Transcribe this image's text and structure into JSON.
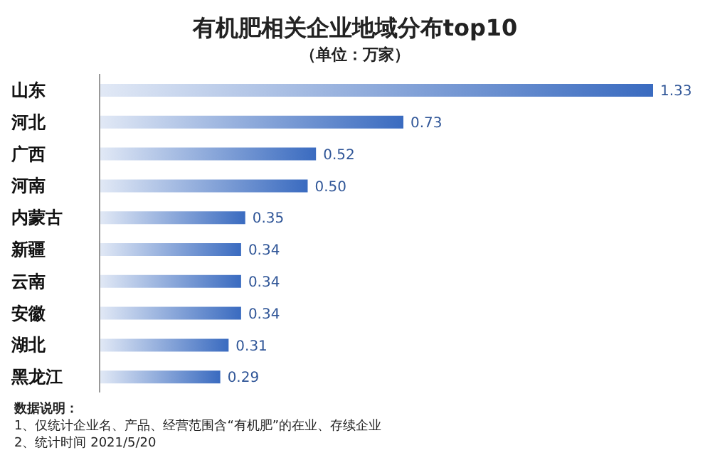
{
  "chart_data": {
    "type": "bar",
    "orientation": "horizontal",
    "title": "有机肥相关企业地域分布top10",
    "subtitle": "（单位：万家）",
    "categories": [
      "山东",
      "河北",
      "广西",
      "河南",
      "内蒙古",
      "新疆",
      "云南",
      "安徽",
      "湖北",
      "黑龙江"
    ],
    "values": [
      1.33,
      0.73,
      0.52,
      0.5,
      0.35,
      0.34,
      0.34,
      0.34,
      0.31,
      0.29
    ],
    "color": "#3a6bc0",
    "value_labels": [
      "1.33",
      "0.73",
      "0.52",
      "0.50",
      "0.35",
      "0.34",
      "0.34",
      "0.34",
      "0.31",
      "0.29"
    ],
    "annotations": [
      "数据说明：",
      "1、仅统计企业名、产品、经营范围含“有机肥”的在业、存续企业",
      "2、统计时间  2021/5/20"
    ]
  }
}
